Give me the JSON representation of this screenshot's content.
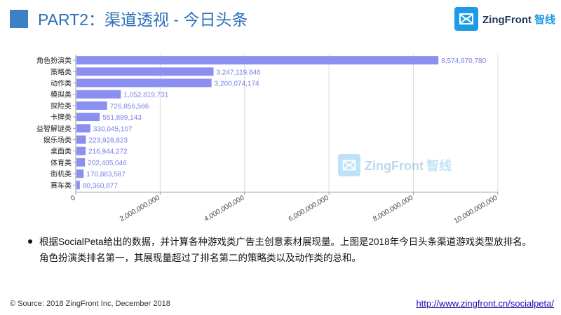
{
  "header": {
    "title": "PART2：渠道透视 - 今日头条",
    "logo_name": "ZingFront",
    "logo_cn": "智线",
    "brand_color": "#1d9be6"
  },
  "watermark": {
    "name": "ZingFront",
    "cn": "智线"
  },
  "chart_data": {
    "type": "bar",
    "orientation": "horizontal",
    "categories": [
      "角色扮演类",
      "策略类",
      "动作类",
      "模拟类",
      "探险类",
      "卡牌类",
      "益智解谜类",
      "娱乐场类",
      "桌面类",
      "体育类",
      "街机类",
      "赛车类"
    ],
    "values": [
      8574670780,
      3247119846,
      3200074174,
      1052819731,
      726856566,
      551889143,
      330045107,
      223928823,
      216944272,
      202405046,
      170883587,
      80360877
    ],
    "data_labels": [
      "8,574,670,780",
      "3,247,119,846",
      "3,200,074,174",
      "1,052,819,731",
      "726,856,566",
      "551,889,143",
      "330,045,107",
      "223,928,823",
      "216,944,272",
      "202,405,046",
      "170,883,587",
      "80,360,877"
    ],
    "x_ticks": [
      0,
      2000000000,
      4000000000,
      6000000000,
      8000000000,
      10000000000
    ],
    "x_tick_labels": [
      "0",
      "2,000,000,000",
      "4,000,000,000",
      "6,000,000,000",
      "8,000,000,000",
      "10,000,000,000"
    ],
    "xlim": [
      0,
      10000000000
    ],
    "grid": true,
    "bar_color": "#8c8ff2",
    "title": "",
    "xlabel": "",
    "ylabel": ""
  },
  "bullet": "根据SocialPeta给出的数据，并计算各种游戏类广告主创意素材展现量。上图是2018年今日头条渠道游戏类型放排名。角色扮演类排名第一，其展现量超过了排名第二的策略类以及动作类的总和。",
  "footer": {
    "source": "© Source: 2018 ZingFront Inc, December 2018",
    "link": "http://www.zingfront.cn/socialpeta/"
  }
}
